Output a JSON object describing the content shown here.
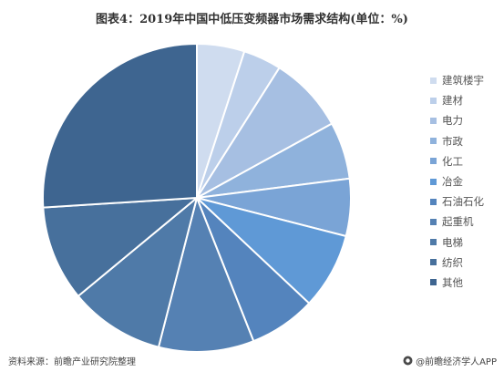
{
  "title": "图表4：2019年中国中低压变频器市场需求结构(单位：%)",
  "source": "资料来源：前瞻产业研究院整理",
  "brand": "@前瞻经济学人APP",
  "chart_data": {
    "type": "pie",
    "title": "图表4：2019年中国中低压变频器市场需求结构(单位：%)",
    "legend_position": "right",
    "slices": [
      {
        "label": "建筑楼宇",
        "value": 5.0,
        "color": "#cfdcef"
      },
      {
        "label": "建材",
        "value": 4.0,
        "color": "#bccfea"
      },
      {
        "label": "电力",
        "value": 8.0,
        "color": "#a6bfe2"
      },
      {
        "label": "市政",
        "value": 6.0,
        "color": "#8fb2dc"
      },
      {
        "label": "化工",
        "value": 6.0,
        "color": "#7aa4d6"
      },
      {
        "label": "冶金",
        "value": 8.0,
        "color": "#5f99d6"
      },
      {
        "label": "石油石化",
        "value": 7.0,
        "color": "#5484bd"
      },
      {
        "label": "起重机",
        "value": 10.0,
        "color": "#5581b3"
      },
      {
        "label": "电梯",
        "value": 10.0,
        "color": "#4f7aa8"
      },
      {
        "label": "纺织",
        "value": 10.0,
        "color": "#47709c"
      },
      {
        "label": "其他",
        "value": 26.0,
        "color": "#3e6590"
      }
    ]
  }
}
